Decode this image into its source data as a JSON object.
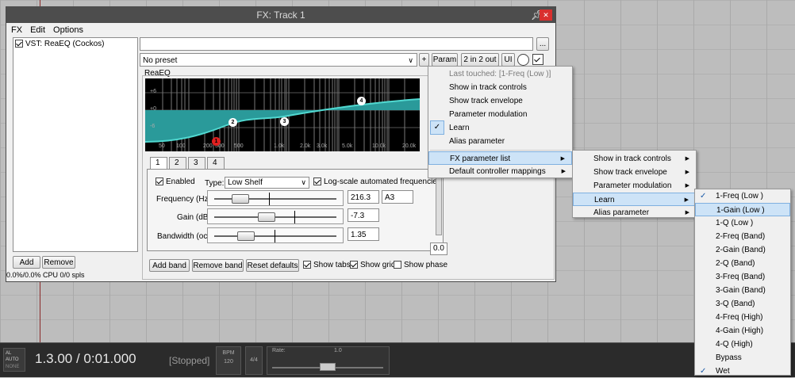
{
  "window": {
    "title": "FX: Track 1"
  },
  "menubar": [
    "FX",
    "Edit",
    "Options"
  ],
  "fx_list": {
    "items": [
      {
        "label": "VST: ReaEQ (Cockos)",
        "checked": true
      }
    ]
  },
  "fx_buttons": {
    "add": "Add",
    "remove": "Remove",
    "cpu": "0.0%/0.0% CPU 0/0 spls"
  },
  "browse_button": "...",
  "preset": {
    "value": "No preset",
    "plus": "+",
    "param": "Param",
    "io": "2 in 2 out",
    "ui": "UI"
  },
  "plugin": {
    "name": "ReaEQ"
  },
  "eq_graph": {
    "db_labels": [
      "+6",
      "+0",
      "-6"
    ],
    "freq_labels": [
      "50",
      "100",
      "200",
      "300",
      "500",
      "1.0k",
      "2.0k",
      "3.0k",
      "5.0k",
      "10.0k",
      "20.0k"
    ],
    "points": [
      "1",
      "2",
      "3",
      "4"
    ]
  },
  "tabs": [
    "1",
    "2",
    "3",
    "4"
  ],
  "band": {
    "enabled_label": "Enabled",
    "type_label": "Type:",
    "type_value": "Low Shelf",
    "logscale_label": "Log-scale automated frequencies",
    "freq_label": "Frequency (Hz):",
    "freq_value": "216.3",
    "freq_note": "A3",
    "gain_label": "Gain (dB):",
    "gain_value": "-7.3",
    "bw_label": "Bandwidth (oct):",
    "bw_value": "1.35",
    "freq_fraction": 0.17,
    "gain_fraction": 0.42,
    "bw_fraction": 0.22
  },
  "output": {
    "value": "0.0"
  },
  "bottom_buttons": {
    "add_band": "Add band",
    "remove_band": "Remove band",
    "reset": "Reset defaults",
    "show_tabs": "Show tabs",
    "show_grid": "Show grid",
    "show_phase": "Show phase"
  },
  "menu1": {
    "last_touched": "Last touched: [1-Freq (Low )]",
    "items": [
      "Show in track controls",
      "Show track envelope",
      "Parameter modulation",
      "Learn",
      "Alias parameter"
    ],
    "fx_param_list": "FX parameter list",
    "default_mappings": "Default controller mappings"
  },
  "menu2": {
    "items": [
      "Show in track controls",
      "Show track envelope",
      "Parameter modulation",
      "Learn",
      "Alias parameter"
    ]
  },
  "menu3": {
    "items": [
      "1-Freq (Low )",
      "1-Gain (Low )",
      "1-Q (Low )",
      "2-Freq (Band)",
      "2-Gain (Band)",
      "2-Q (Band)",
      "3-Freq (Band)",
      "3-Gain (Band)",
      "3-Q (Band)",
      "4-Freq (High)",
      "4-Gain (High)",
      "4-Q (High)",
      "Bypass",
      "Wet"
    ]
  },
  "transport": {
    "auto_label": "AL AUTO",
    "auto_sub": "NONE",
    "position": "1.3.00 / 0:01.000",
    "status": "[Stopped]",
    "bpm_label": "BPM",
    "bpm_value": "120",
    "timesig": "4/4",
    "rate_label": "Rate:",
    "rate_value": "1.0"
  },
  "colors": {
    "eq_fill": "#2a9a9a",
    "eq_line": "#50d8d0",
    "highlight": "#cde3f7",
    "point_active": "#e02020"
  }
}
